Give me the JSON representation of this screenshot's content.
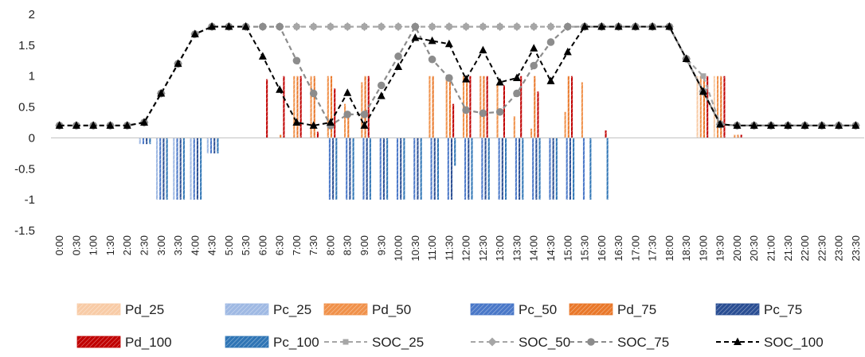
{
  "chart_data": {
    "type": "bar",
    "title": "",
    "xlabel": "",
    "ylabel": "",
    "ylim": [
      -1.5,
      2
    ],
    "y_ticks": [
      2,
      1.5,
      1,
      0.5,
      0,
      -0.5,
      -1,
      -1.5
    ],
    "y_tick_labels": [
      "2",
      "1.5",
      "1",
      "0.5",
      "0",
      "-0.5",
      "-1",
      "-1.5"
    ],
    "grid": false,
    "legend_position": "bottom",
    "categories": [
      "0:00",
      "0:30",
      "1:00",
      "1:30",
      "2:00",
      "2:30",
      "3:00",
      "3:30",
      "4:00",
      "4:30",
      "5:00",
      "5:30",
      "6:00",
      "6:30",
      "7:00",
      "7:30",
      "8:00",
      "8:30",
      "9:00",
      "9:30",
      "10:00",
      "10:30",
      "11:00",
      "11:30",
      "12:00",
      "12:30",
      "13:00",
      "13:30",
      "14:00",
      "14:30",
      "15:00",
      "15:30",
      "16:00",
      "16:30",
      "17:00",
      "17:30",
      "18:00",
      "18:30",
      "19:00",
      "19:30",
      "20:00",
      "20:30",
      "21:00",
      "21:30",
      "22:00",
      "22:30",
      "23:00",
      "23:30"
    ],
    "bar_series": [
      {
        "name": "Pd_25",
        "kind": "discharge",
        "color": "#f8cba6",
        "values": [
          0,
          0,
          0,
          0,
          0,
          0,
          0,
          0,
          0,
          0,
          0,
          0,
          0,
          0,
          0,
          0,
          0,
          0,
          0,
          0,
          0,
          0,
          0,
          0,
          0,
          0,
          0,
          0,
          0,
          0,
          0,
          0,
          0,
          0,
          0,
          0,
          0,
          0,
          1,
          1,
          0,
          0,
          0,
          0,
          0,
          0,
          0,
          0
        ]
      },
      {
        "name": "Pc_25",
        "kind": "charge",
        "color": "#9fb9e3",
        "values": [
          0,
          0,
          0,
          0,
          0,
          -0.1,
          -1,
          -1,
          -1,
          -0.25,
          0,
          0,
          0,
          0,
          0,
          0,
          0,
          0,
          0,
          0,
          0,
          0,
          0,
          0,
          0,
          0,
          0,
          0,
          0,
          0,
          0,
          0,
          0,
          0,
          0,
          0,
          0,
          0,
          0,
          0,
          0,
          0,
          0,
          0,
          0,
          0,
          0,
          0
        ]
      },
      {
        "name": "Pd_50",
        "kind": "discharge",
        "color": "#f0914a",
        "values": [
          0,
          0,
          0,
          0,
          0,
          0,
          0,
          0,
          0,
          0,
          0,
          0,
          0,
          0,
          1,
          1,
          1,
          0.55,
          0.9,
          0,
          0,
          0,
          1,
          1,
          1,
          1,
          0.85,
          0.35,
          0.15,
          0,
          0.42,
          0.9,
          0,
          0,
          0,
          0,
          0,
          0,
          1,
          1,
          0.05,
          0,
          0,
          0,
          0,
          0,
          0,
          0
        ]
      },
      {
        "name": "Pc_50",
        "kind": "charge",
        "color": "#4a78c8",
        "values": [
          0,
          0,
          0,
          0,
          0,
          -0.1,
          -1,
          -1,
          -1,
          -0.25,
          0,
          0,
          0,
          0,
          0,
          0,
          -1,
          -1,
          -1,
          -1,
          -1,
          -1,
          -1,
          -1,
          -1,
          -1,
          -1,
          -1,
          -1,
          -1,
          -1,
          -1,
          0,
          0,
          0,
          0,
          0,
          0,
          0,
          0,
          0,
          0,
          0,
          0,
          0,
          0,
          0,
          0
        ]
      },
      {
        "name": "Pd_75",
        "kind": "discharge",
        "color": "#e9782a",
        "values": [
          0,
          0,
          0,
          0,
          0,
          0,
          0,
          0,
          0,
          0,
          0,
          0,
          0,
          0.05,
          1,
          1,
          1,
          0.35,
          1,
          0,
          0,
          0,
          1,
          1,
          1,
          1,
          0,
          0,
          1,
          0,
          1,
          0,
          0,
          0,
          0,
          0,
          0,
          0,
          1,
          1,
          0.05,
          0,
          0,
          0,
          0,
          0,
          0,
          0
        ]
      },
      {
        "name": "Pc_75",
        "kind": "charge",
        "color": "#2a4e93",
        "values": [
          0,
          0,
          0,
          0,
          0,
          -0.1,
          -1,
          -1,
          -1,
          -0.25,
          0,
          0,
          0,
          0,
          0,
          0,
          -1,
          -1,
          -1,
          -1,
          -1,
          -1,
          -1,
          -1,
          -1,
          -1,
          -1,
          -1,
          -1,
          -1,
          -1,
          0,
          0,
          0,
          0,
          0,
          0,
          0,
          0,
          0,
          0,
          0,
          0,
          0,
          0,
          0,
          0,
          0
        ]
      },
      {
        "name": "Pd_100",
        "kind": "discharge",
        "color": "#c00000",
        "values": [
          0,
          0,
          0,
          0,
          0,
          0,
          0,
          0,
          0,
          0,
          0,
          0,
          0.95,
          1,
          1,
          0.1,
          0.8,
          0,
          1,
          0,
          0,
          0,
          0,
          0.55,
          1,
          1,
          0.85,
          1,
          0.75,
          0,
          1,
          0,
          0.12,
          0,
          0,
          0,
          0,
          0,
          1,
          1,
          0.05,
          0,
          0,
          0,
          0,
          0,
          0,
          0
        ]
      },
      {
        "name": "Pc_100",
        "kind": "charge",
        "color": "#2f75b5",
        "values": [
          0,
          0,
          0,
          0,
          0,
          -0.1,
          -1,
          -1,
          -1,
          -0.25,
          0,
          0,
          0,
          0,
          0,
          0,
          -1,
          -1,
          -1,
          -1,
          -1,
          -1,
          -1,
          -0.45,
          -1,
          -1,
          -1,
          -1,
          -1,
          -1,
          -1,
          -1,
          -1,
          0,
          0,
          0,
          0,
          0,
          0,
          0,
          0,
          0,
          0,
          0,
          0,
          0,
          0,
          0
        ]
      }
    ],
    "line_series": [
      {
        "name": "SOC_25",
        "color": "#a6a6a6",
        "marker": "square",
        "values": [
          0.2,
          0.2,
          0.2,
          0.2,
          0.2,
          0.25,
          0.72,
          1.2,
          1.68,
          1.8,
          1.8,
          1.8,
          1.8,
          1.8,
          1.8,
          1.8,
          1.8,
          1.8,
          1.8,
          1.8,
          1.8,
          1.8,
          1.8,
          1.8,
          1.8,
          1.8,
          1.8,
          1.8,
          1.8,
          1.8,
          1.8,
          1.8,
          1.8,
          1.8,
          1.8,
          1.8,
          1.8,
          1.28,
          1.0,
          0.22,
          0.2,
          0.2,
          0.2,
          0.2,
          0.2,
          0.2,
          0.2,
          0.2
        ]
      },
      {
        "name": "SOC_50",
        "color": "#a6a6a6",
        "marker": "diamond",
        "values": [
          0.2,
          0.2,
          0.2,
          0.2,
          0.2,
          0.25,
          0.72,
          1.2,
          1.68,
          1.8,
          1.8,
          1.8,
          1.8,
          1.8,
          1.8,
          1.8,
          1.8,
          1.8,
          1.8,
          1.8,
          1.8,
          1.8,
          1.8,
          1.8,
          1.8,
          1.8,
          1.8,
          1.8,
          1.8,
          1.8,
          1.8,
          1.8,
          1.8,
          1.8,
          1.8,
          1.8,
          1.8,
          1.28,
          0.75,
          0.22,
          0.2,
          0.2,
          0.2,
          0.2,
          0.2,
          0.2,
          0.2,
          0.2
        ]
      },
      {
        "name": "SOC_75",
        "color": "#8c8c8c",
        "marker": "circle",
        "values": [
          0.2,
          0.2,
          0.2,
          0.2,
          0.2,
          0.25,
          0.72,
          1.2,
          1.68,
          1.8,
          1.8,
          1.8,
          1.8,
          1.8,
          1.25,
          0.72,
          0.2,
          0.38,
          0.38,
          0.85,
          1.32,
          1.8,
          1.27,
          0.97,
          0.45,
          0.4,
          0.42,
          0.72,
          1.17,
          1.55,
          1.8,
          1.8,
          1.8,
          1.8,
          1.8,
          1.8,
          1.8,
          1.28,
          0.75,
          0.22,
          0.2,
          0.2,
          0.2,
          0.2,
          0.2,
          0.2,
          0.2,
          0.2
        ]
      },
      {
        "name": "SOC_100",
        "color": "#000000",
        "marker": "triangle",
        "values": [
          0.2,
          0.2,
          0.2,
          0.2,
          0.2,
          0.25,
          0.72,
          1.2,
          1.68,
          1.8,
          1.8,
          1.8,
          1.32,
          0.78,
          0.25,
          0.2,
          0.25,
          0.73,
          0.2,
          0.68,
          1.15,
          1.62,
          1.57,
          1.52,
          0.95,
          1.42,
          0.9,
          0.97,
          1.45,
          0.92,
          1.39,
          1.8,
          1.8,
          1.8,
          1.8,
          1.8,
          1.8,
          1.28,
          0.75,
          0.22,
          0.2,
          0.2,
          0.2,
          0.2,
          0.2,
          0.2,
          0.2,
          0.2
        ]
      }
    ],
    "legend": [
      {
        "label": "Pd_25",
        "type": "bar",
        "color": "#f8cba6"
      },
      {
        "label": "Pc_25",
        "type": "bar",
        "color": "#9fb9e3"
      },
      {
        "label": "Pd_50",
        "type": "bar",
        "color": "#f0914a"
      },
      {
        "label": "Pc_50",
        "type": "bar",
        "color": "#4a78c8"
      },
      {
        "label": "Pd_75",
        "type": "bar",
        "color": "#e9782a"
      },
      {
        "label": "Pc_75",
        "type": "bar",
        "color": "#2a4e93"
      },
      {
        "label": "Pd_100",
        "type": "bar",
        "color": "#c00000"
      },
      {
        "label": "Pc_100",
        "type": "bar",
        "color": "#2f75b5"
      },
      {
        "label": "SOC_25",
        "type": "line",
        "color": "#a6a6a6",
        "marker": "square"
      },
      {
        "label": "SOC_50",
        "type": "line",
        "color": "#a6a6a6",
        "marker": "diamond"
      },
      {
        "label": "SOC_75",
        "type": "line",
        "color": "#8c8c8c",
        "marker": "circle"
      },
      {
        "label": "SOC_100",
        "type": "line",
        "color": "#000000",
        "marker": "triangle"
      }
    ]
  }
}
